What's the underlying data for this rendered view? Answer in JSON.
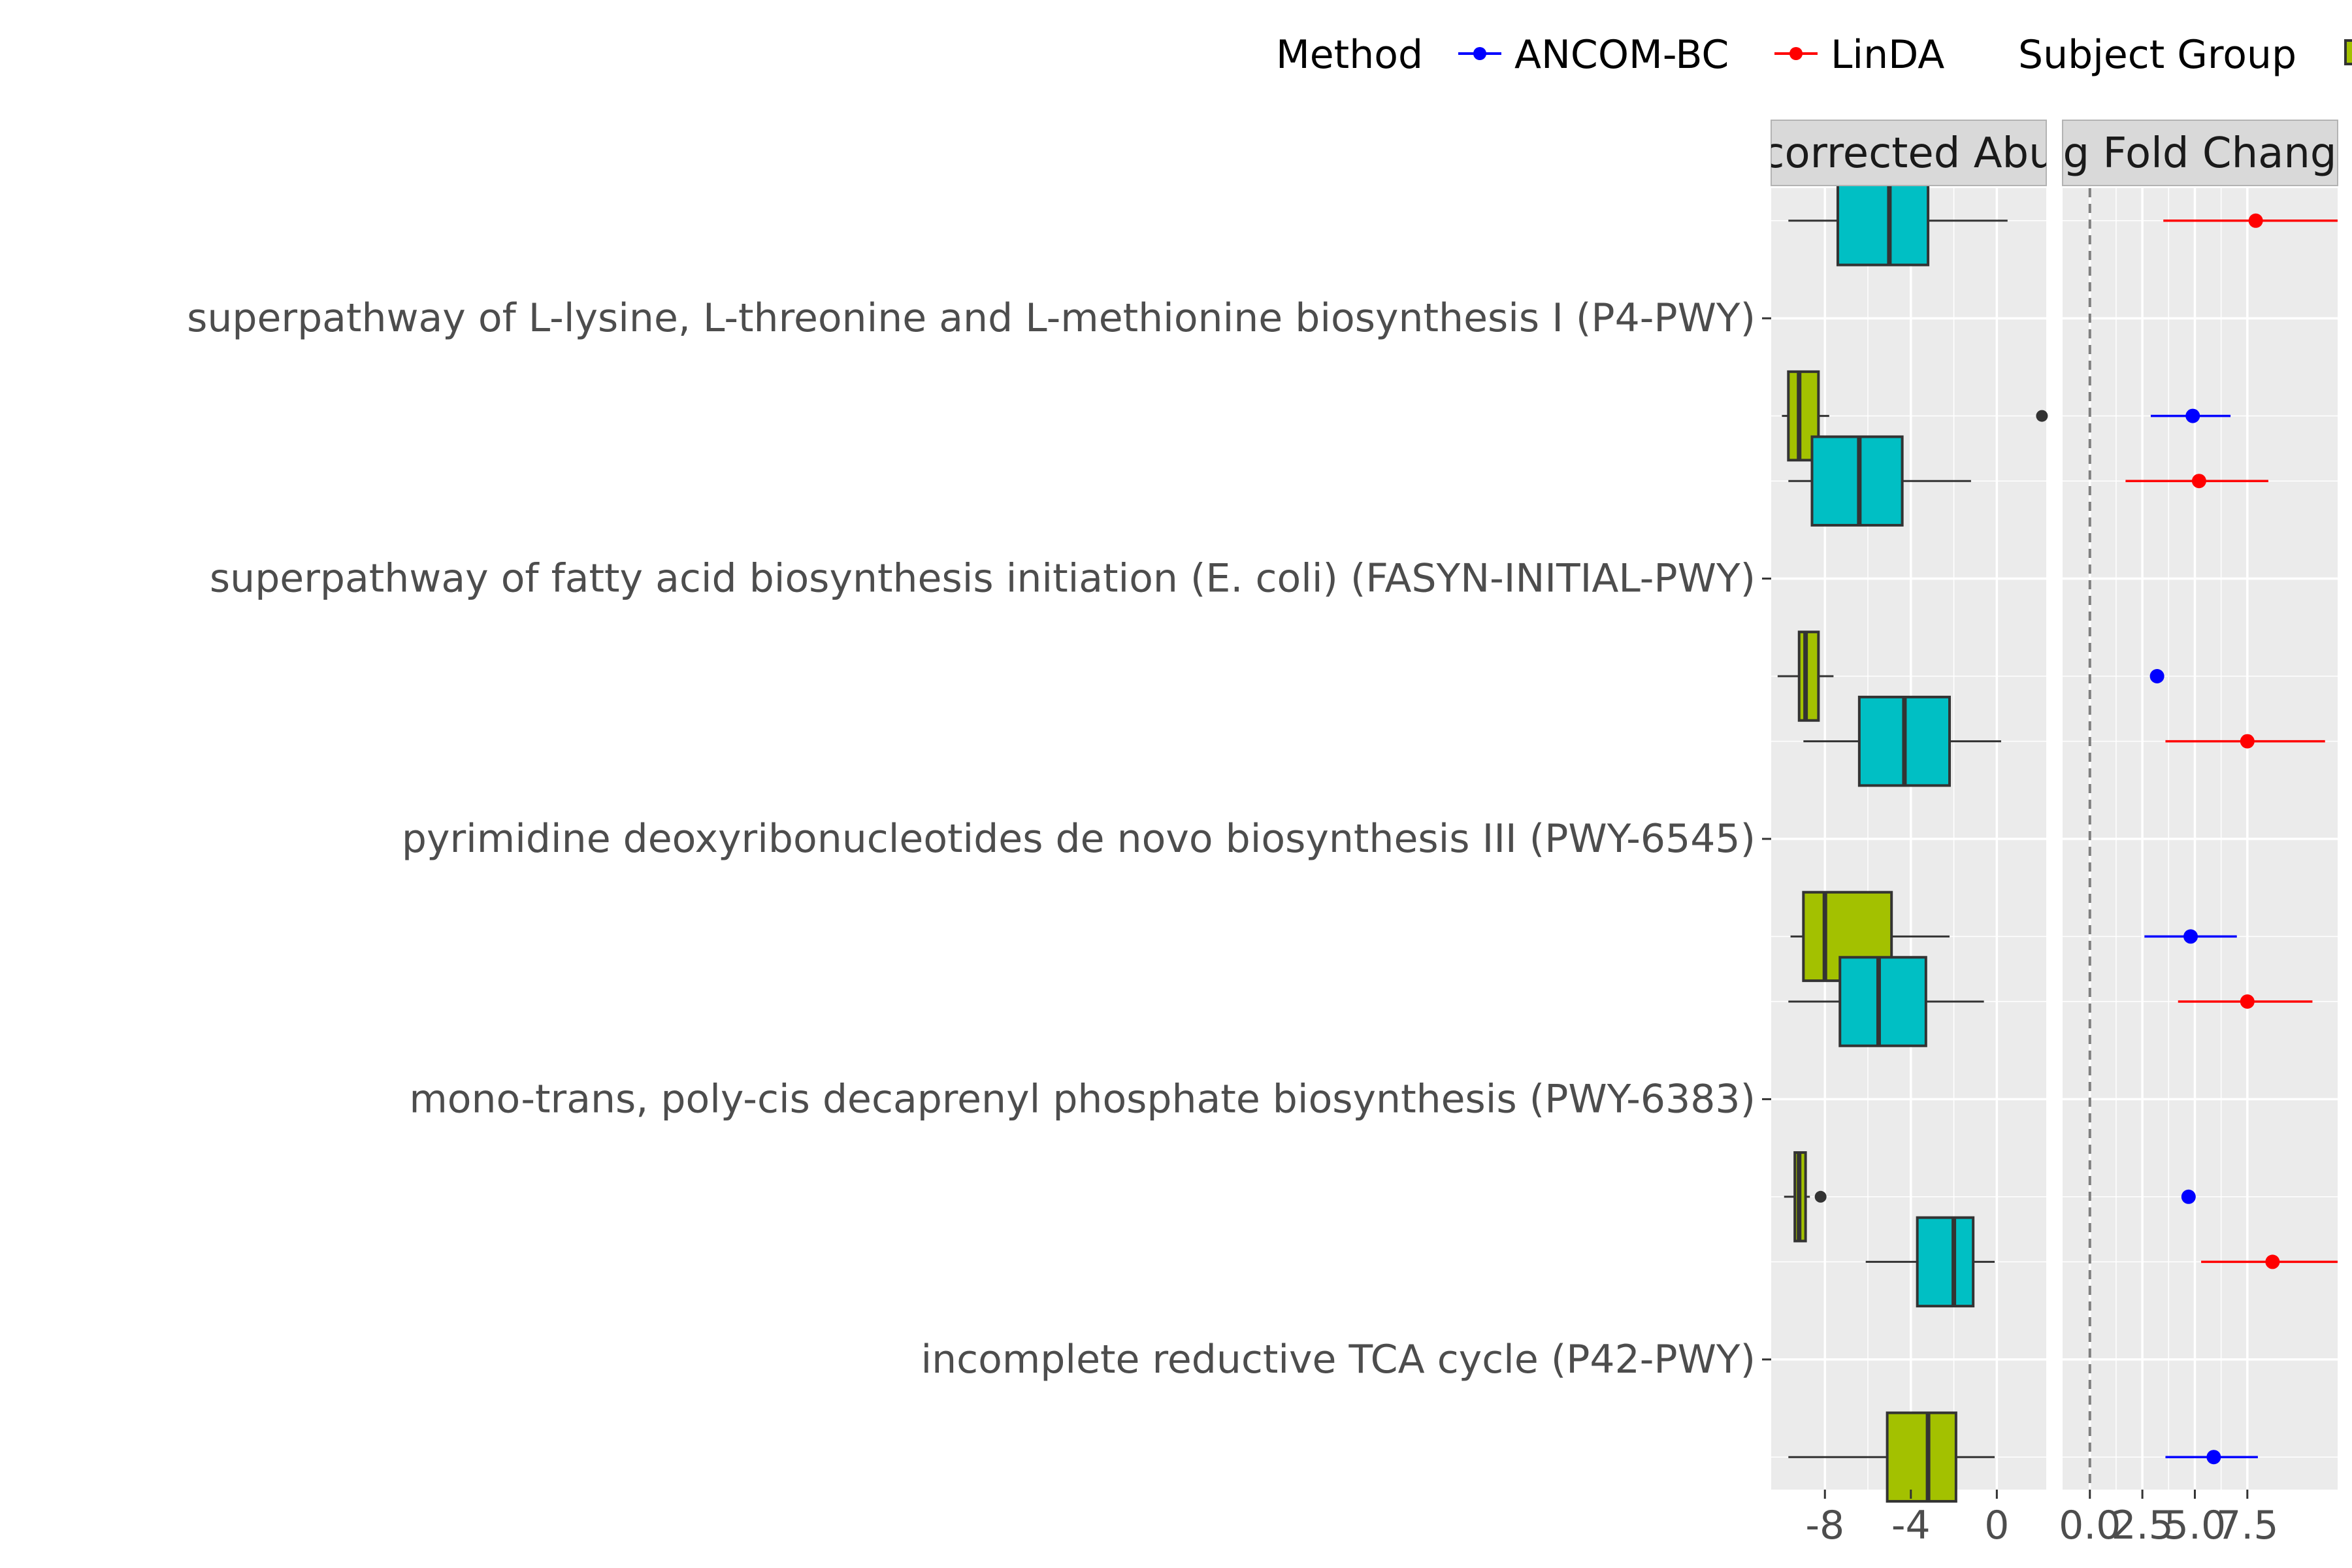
{
  "chart_data": {
    "type": "box",
    "legend": {
      "position": "top",
      "method_title": "Method",
      "method_entries": [
        {
          "label": "ANCOM-BC",
          "color": "#0000ff"
        },
        {
          "label": "LinDA",
          "color": "#ff0000"
        }
      ],
      "subject_title": "Subject Group",
      "subject_colors": [
        "#00bfc4",
        "#a3c100"
      ]
    },
    "categories": [
      "superpathway of L-lysine, L-threonine and L-methionine biosynthesis I (P4-PWY)",
      "superpathway of fatty acid biosynthesis initiation (E. coli) (FASYN-INITIAL-PWY)",
      "pyrimidine deoxyribonucleotides de novo biosynthesis III (PWY-6545)",
      "mono-trans, poly-cis decaprenyl phosphate biosynthesis (PWY-6383)",
      "incomplete reductive TCA cycle (P42-PWY)"
    ],
    "panels": [
      {
        "strip": "corrected Abu",
        "type": "boxplot",
        "xlim": [
          -10.5,
          2.3
        ],
        "ticks": [
          -8,
          -4,
          0
        ],
        "tick_labels": [
          "-8",
          "-4",
          "0"
        ],
        "grid": true,
        "box_width": 0.34,
        "boxes": [
          {
            "category": 0,
            "group": 0,
            "whisker_low": -9.7,
            "q1": -7.4,
            "median": -5.0,
            "q3": -3.2,
            "whisker_high": 0.5,
            "outliers": []
          },
          {
            "category": 0,
            "group": 1,
            "whisker_low": -10.0,
            "q1": -9.7,
            "median": -9.2,
            "q3": -8.3,
            "whisker_high": -7.8,
            "outliers": [
              2.1
            ]
          },
          {
            "category": 1,
            "group": 0,
            "whisker_low": -9.7,
            "q1": -8.6,
            "median": -6.4,
            "q3": -4.4,
            "whisker_high": -1.2,
            "outliers": []
          },
          {
            "category": 1,
            "group": 1,
            "whisker_low": -10.2,
            "q1": -9.2,
            "median": -8.9,
            "q3": -8.3,
            "whisker_high": -7.6,
            "outliers": []
          },
          {
            "category": 2,
            "group": 0,
            "whisker_low": -9.0,
            "q1": -6.4,
            "median": -4.3,
            "q3": -2.2,
            "whisker_high": 0.2,
            "outliers": []
          },
          {
            "category": 2,
            "group": 1,
            "whisker_low": -9.6,
            "q1": -9.0,
            "median": -8.0,
            "q3": -4.9,
            "whisker_high": -2.2,
            "outliers": []
          },
          {
            "category": 3,
            "group": 0,
            "whisker_low": -9.7,
            "q1": -7.3,
            "median": -5.5,
            "q3": -3.3,
            "whisker_high": -0.6,
            "outliers": []
          },
          {
            "category": 3,
            "group": 1,
            "whisker_low": -9.9,
            "q1": -9.4,
            "median": -9.2,
            "q3": -8.9,
            "whisker_high": -8.7,
            "outliers": [
              -8.2
            ]
          },
          {
            "category": 4,
            "group": 0,
            "whisker_low": -6.1,
            "q1": -3.7,
            "median": -2.0,
            "q3": -1.1,
            "whisker_high": -0.1,
            "outliers": []
          },
          {
            "category": 4,
            "group": 1,
            "whisker_low": -9.7,
            "q1": -5.1,
            "median": -3.2,
            "q3": -1.9,
            "whisker_high": -0.1,
            "outliers": []
          }
        ]
      },
      {
        "strip": "g Fold Chang",
        "type": "pointrange",
        "xlim": [
          -1.3,
          11.8
        ],
        "ticks": [
          0,
          2.5,
          5,
          7.5
        ],
        "tick_labels": [
          "0.0",
          "2.5",
          "5.0",
          "7.5"
        ],
        "grid": true,
        "reference_line": 0,
        "points": [
          {
            "category": 0,
            "method": "LinDA",
            "estimate": 7.9,
            "low": 3.5,
            "high": 12.0
          },
          {
            "category": 0,
            "method": "ANCOM-BC",
            "estimate": 4.9,
            "low": 2.9,
            "high": 6.7
          },
          {
            "category": 1,
            "method": "LinDA",
            "estimate": 5.2,
            "low": 1.7,
            "high": 8.5
          },
          {
            "category": 1,
            "method": "ANCOM-BC",
            "estimate": 3.2,
            "low": 3.2,
            "high": 3.2
          },
          {
            "category": 2,
            "method": "LinDA",
            "estimate": 7.5,
            "low": 3.6,
            "high": 11.2
          },
          {
            "category": 2,
            "method": "ANCOM-BC",
            "estimate": 4.8,
            "low": 2.6,
            "high": 7.0
          },
          {
            "category": 3,
            "method": "LinDA",
            "estimate": 7.5,
            "low": 4.2,
            "high": 10.6
          },
          {
            "category": 3,
            "method": "ANCOM-BC",
            "estimate": 4.7,
            "low": 4.7,
            "high": 4.7
          },
          {
            "category": 4,
            "method": "LinDA",
            "estimate": 8.7,
            "low": 5.3,
            "high": 11.8
          },
          {
            "category": 4,
            "method": "ANCOM-BC",
            "estimate": 5.9,
            "low": 3.6,
            "high": 8.0
          }
        ]
      }
    ]
  }
}
